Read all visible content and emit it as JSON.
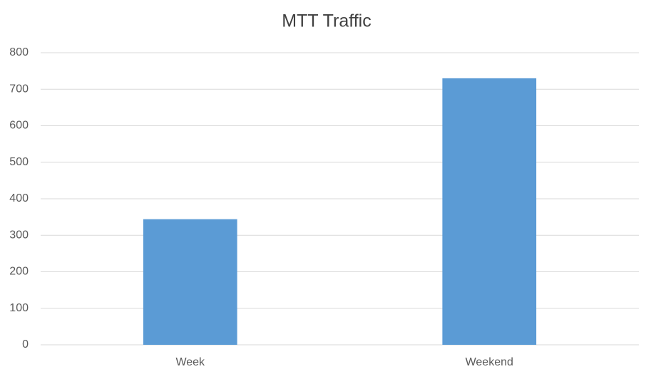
{
  "chart_data": {
    "type": "bar",
    "title": "MTT Traffic",
    "categories": [
      "Week",
      "Weekend"
    ],
    "values": [
      344,
      730
    ],
    "color": "#5b9bd5",
    "ylim": [
      0,
      800
    ],
    "yticks": [
      0,
      100,
      200,
      300,
      400,
      500,
      600,
      700,
      800
    ],
    "grid": true
  }
}
